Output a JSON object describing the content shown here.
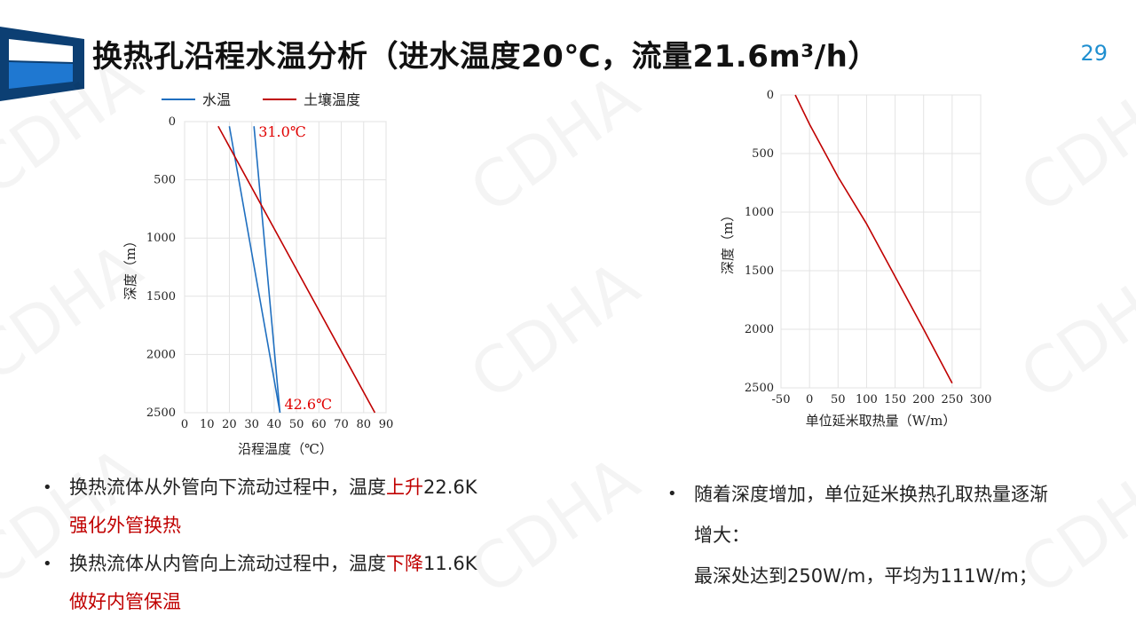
{
  "header": {
    "title": "换热孔沿程水温分析（进水温度20℃，流量21.6m³/h）",
    "page_number": "29",
    "brand_color": "#0c5aa6"
  },
  "watermark": "CDHA",
  "chart_data": [
    {
      "type": "line",
      "orientation": "depth-down",
      "xlabel": "沿程温度（℃）",
      "ylabel": "深度（m）",
      "xlim": [
        0,
        90
      ],
      "ylim": [
        0,
        2500
      ],
      "xticks": [
        "0",
        "10",
        "20",
        "30",
        "40",
        "50",
        "60",
        "70",
        "80",
        "90"
      ],
      "yticks": [
        "0",
        "500",
        "1000",
        "1500",
        "2000",
        "2500"
      ],
      "grid": true,
      "legend": "top",
      "series": [
        {
          "name": "水温",
          "color": "#1f6fc0",
          "points": [
            [
              20,
              40
            ],
            [
              42.6,
              2500
            ]
          ]
        },
        {
          "name": "水温",
          "color": "#1f6fc0",
          "points": [
            [
              31,
              40
            ],
            [
              42.6,
              2500
            ]
          ]
        },
        {
          "name": "土壤温度",
          "color": "#c00000",
          "points": [
            [
              15,
              40
            ],
            [
              85,
              2500
            ]
          ]
        }
      ],
      "legend_entries": [
        {
          "name": "水温",
          "color": "#1f6fc0"
        },
        {
          "name": "土壤温度",
          "color": "#c00000"
        }
      ],
      "annotations": [
        {
          "text": "31.0℃",
          "x": 31,
          "y": 40,
          "color": "#e00000"
        },
        {
          "text": "42.6℃",
          "x": 42.6,
          "y": 2500,
          "color": "#e00000"
        }
      ]
    },
    {
      "type": "line",
      "orientation": "depth-down",
      "xlabel": "单位延米取热量（W/m）",
      "ylabel": "深度（m）",
      "xlim": [
        -50,
        300
      ],
      "ylim": [
        0,
        2500
      ],
      "xticks": [
        "-50",
        "0",
        "50",
        "100",
        "150",
        "200",
        "250",
        "300"
      ],
      "yticks": [
        "0",
        "500",
        "1000",
        "1500",
        "2000",
        "2500"
      ],
      "grid": true,
      "series": [
        {
          "color": "#c00000",
          "points": [
            [
              -25,
              0
            ],
            [
              0,
              250
            ],
            [
              50,
              700
            ],
            [
              100,
              1100
            ],
            [
              150,
              1550
            ],
            [
              200,
              2000
            ],
            [
              250,
              2460
            ]
          ]
        }
      ]
    }
  ],
  "left_bullets": [
    {
      "before": "换热流体从外管向下流动过程中，温度",
      "highlight": "上升",
      "after": "22.6K",
      "line2": "强化外管换热"
    },
    {
      "before": "换热流体从内管向上流动过程中，温度",
      "highlight": "下降",
      "after": "11.6K",
      "line2": "做好内管保温"
    }
  ],
  "right_bullet": {
    "line1": "随着深度增加，单位延米换热孔取热量逐渐",
    "line2": "增大：",
    "line3": "最深处达到250W/m，平均为111W/m；"
  }
}
